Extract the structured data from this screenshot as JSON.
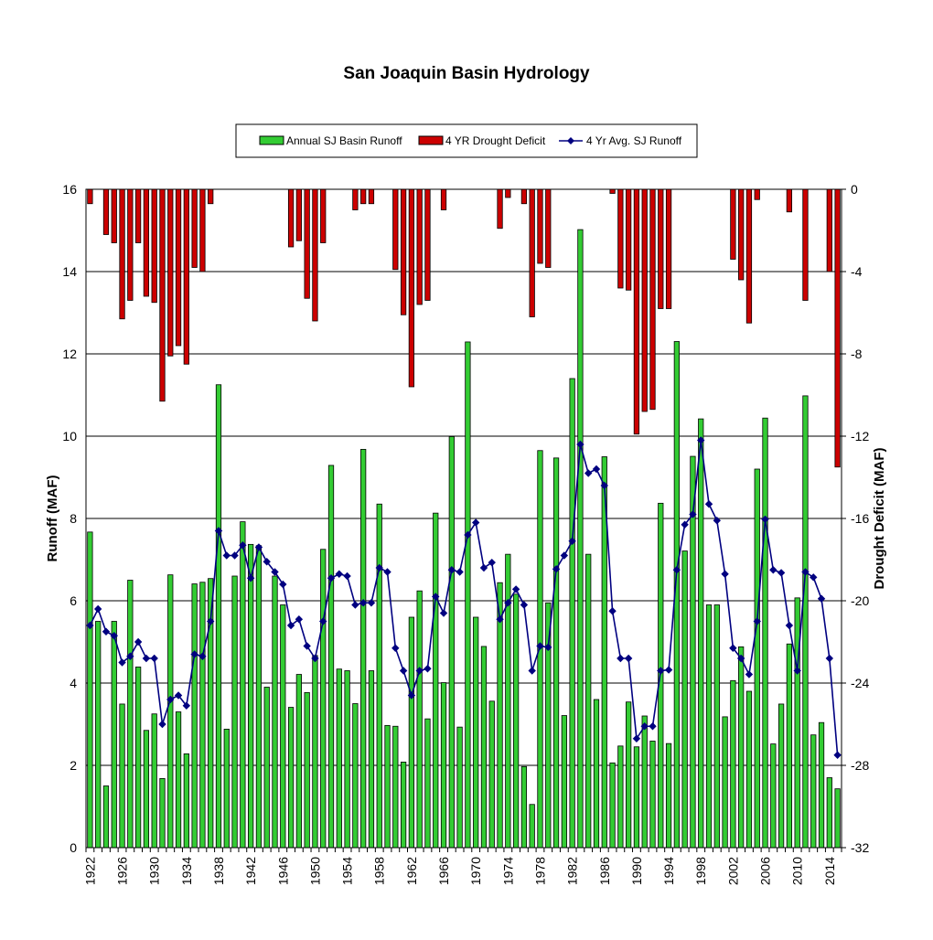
{
  "chart_data": {
    "type": "bar+line",
    "title": "San Joaquin Basin Hydrology",
    "ylabel": "Runoff (MAF)",
    "y2label": "Drought Deficit (MAF)",
    "ylim": [
      0,
      16
    ],
    "y2lim": [
      -32,
      0
    ],
    "yticks": [
      "0",
      "2",
      "4",
      "6",
      "8",
      "10",
      "12",
      "14",
      "16"
    ],
    "y2ticks": [
      "-32",
      "-28",
      "-24",
      "-20",
      "-16",
      "-12",
      "-8",
      "-4",
      "0"
    ],
    "xticks": [
      "1922",
      "1926",
      "1930",
      "1934",
      "1938",
      "1942",
      "1946",
      "1950",
      "1954",
      "1958",
      "1962",
      "1966",
      "1970",
      "1974",
      "1978",
      "1982",
      "1986",
      "1990",
      "1994",
      "1998",
      "2002",
      "2006",
      "2010",
      "2014"
    ],
    "legend": {
      "position": "top",
      "entries": [
        "Annual SJ Basin Runoff",
        "4 YR Drought Deficit",
        "4 Yr Avg. SJ Runoff"
      ]
    },
    "x_start": 1922,
    "x": [
      1922,
      1923,
      1924,
      1925,
      1926,
      1927,
      1928,
      1929,
      1930,
      1931,
      1932,
      1933,
      1934,
      1935,
      1936,
      1937,
      1938,
      1939,
      1940,
      1941,
      1942,
      1943,
      1944,
      1945,
      1946,
      1947,
      1948,
      1949,
      1950,
      1951,
      1952,
      1953,
      1954,
      1955,
      1956,
      1957,
      1958,
      1959,
      1960,
      1961,
      1962,
      1963,
      1964,
      1965,
      1966,
      1967,
      1968,
      1969,
      1970,
      1971,
      1972,
      1973,
      1974,
      1975,
      1976,
      1977,
      1978,
      1979,
      1980,
      1981,
      1982,
      1983,
      1984,
      1985,
      1986,
      1987,
      1988,
      1989,
      1990,
      1991,
      1992,
      1993,
      1994,
      1995,
      1996,
      1997,
      1998,
      1999,
      2000,
      2001,
      2002,
      2003,
      2004,
      2005,
      2006,
      2007,
      2008,
      2009,
      2010,
      2011,
      2012,
      2013,
      2014,
      2015
    ],
    "series": [
      {
        "name": "Annual SJ Basin Runoff",
        "type": "bar",
        "axis": "left",
        "color": "#33cc33",
        "values": [
          7.67,
          5.5,
          1.5,
          5.5,
          3.49,
          6.5,
          4.39,
          2.85,
          3.25,
          1.68,
          6.63,
          3.3,
          2.28,
          6.41,
          6.45,
          6.54,
          11.25,
          2.88,
          6.6,
          7.92,
          7.37,
          7.34,
          3.9,
          6.6,
          5.9,
          3.41,
          4.21,
          3.77,
          4.67,
          7.25,
          9.29,
          4.34,
          4.3,
          3.5,
          9.68,
          4.3,
          8.35,
          2.97,
          2.95,
          2.08,
          5.6,
          6.24,
          3.13,
          8.13,
          4.01,
          9.99,
          2.93,
          12.29,
          5.6,
          4.89,
          3.56,
          6.44,
          7.13,
          6.16,
          1.97,
          1.05,
          9.65,
          5.95,
          9.47,
          3.21,
          11.4,
          15.02,
          7.13,
          3.6,
          9.5,
          2.06,
          2.47,
          3.54,
          2.45,
          3.2,
          2.59,
          8.37,
          2.53,
          12.3,
          7.21,
          9.51,
          10.42,
          5.9,
          5.9,
          3.18,
          4.06,
          4.88,
          3.8,
          9.2,
          10.44,
          2.52,
          3.49,
          4.95,
          6.07,
          10.98,
          2.74,
          3.04,
          1.7,
          1.43
        ]
      },
      {
        "name": "4 YR Drought Deficit",
        "type": "bar",
        "axis": "right",
        "color": "#cc0000",
        "values": [
          -0.7,
          0,
          -2.2,
          -2.6,
          -6.3,
          -5.4,
          -2.6,
          -5.2,
          -5.5,
          -10.3,
          -8.1,
          -7.6,
          -8.5,
          -3.8,
          -4,
          -0.7,
          0,
          0,
          0,
          0,
          0,
          0,
          0,
          0,
          0,
          -2.8,
          -2.5,
          -5.3,
          -6.4,
          -2.6,
          0,
          0,
          0,
          -1,
          -0.7,
          -0.7,
          0,
          0,
          -3.9,
          -6.1,
          -9.6,
          -5.6,
          -5.4,
          0,
          -1,
          0,
          0,
          0,
          0,
          0,
          0,
          -1.9,
          -0.4,
          0,
          -0.7,
          -6.2,
          -3.6,
          -3.8,
          0,
          0,
          0,
          0,
          0,
          0,
          0,
          -0.2,
          -4.8,
          -4.9,
          -11.9,
          -10.8,
          -10.7,
          -5.8,
          -5.8,
          0,
          0,
          0,
          0,
          0,
          0,
          0,
          -3.4,
          -4.4,
          -6.5,
          -0.5,
          0,
          0,
          0,
          -1.1,
          0,
          -5.4,
          0,
          0,
          -4,
          -13.5
        ]
      },
      {
        "name": "4 Yr Avg. SJ Runoff",
        "type": "line",
        "axis": "left",
        "color": "#000080",
        "values": [
          5.4,
          5.8,
          5.25,
          5.15,
          4.5,
          4.65,
          5.0,
          4.6,
          4.6,
          3.0,
          3.6,
          3.7,
          3.45,
          4.7,
          4.65,
          5.5,
          7.7,
          7.1,
          7.1,
          7.35,
          6.55,
          7.3,
          6.95,
          6.7,
          6.4,
          5.4,
          5.55,
          4.9,
          4.6,
          5.5,
          6.55,
          6.65,
          6.6,
          5.9,
          5.95,
          5.95,
          6.8,
          6.7,
          4.85,
          4.3,
          3.7,
          4.3,
          4.35,
          6.1,
          5.7,
          6.75,
          6.7,
          7.6,
          7.9,
          6.8,
          6.93,
          5.55,
          5.95,
          6.28,
          5.9,
          4.3,
          4.9,
          4.87,
          6.77,
          7.1,
          7.45,
          9.8,
          9.1,
          9.2,
          8.8,
          5.75,
          4.6,
          4.6,
          2.65,
          2.95,
          2.95,
          4.3,
          4.32,
          6.75,
          7.85,
          8.1,
          9.9,
          8.35,
          7.95,
          6.65,
          4.85,
          4.6,
          4.21,
          5.5,
          7.98,
          6.75,
          6.68,
          5.4,
          4.3,
          6.7,
          6.57,
          6.05,
          4.6,
          2.25
        ]
      }
    ]
  }
}
